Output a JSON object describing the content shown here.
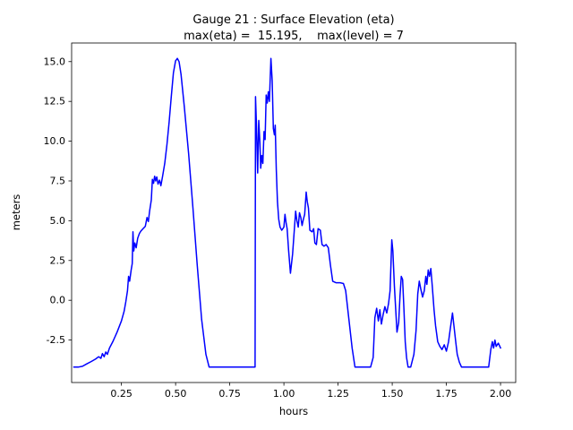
{
  "figure": {
    "background": "#ffffff"
  },
  "chart_data": {
    "type": "line",
    "title": "Gauge 21 : Surface Elevation (eta)",
    "subtitle": "max(eta) =  15.195,    max(level) = 7",
    "xlabel": "hours",
    "ylabel": "meters",
    "grid": false,
    "legend_position": "none",
    "line_color": "#0000ff",
    "line_width": 1.5,
    "xlim": [
      0.02,
      2.07
    ],
    "ylim": [
      -5.17,
      16.17
    ],
    "xticks": [
      0.25,
      0.5,
      0.75,
      1.0,
      1.25,
      1.5,
      1.75,
      2.0
    ],
    "xtick_labels": [
      "0.25",
      "0.50",
      "0.75",
      "1.00",
      "1.25",
      "1.50",
      "1.75",
      "2.00"
    ],
    "yticks": [
      -2.5,
      0.0,
      2.5,
      5.0,
      7.5,
      10.0,
      12.5,
      15.0
    ],
    "ytick_labels": [
      "-2.5",
      "0.0",
      "2.5",
      "5.0",
      "7.5",
      "10.0",
      "12.5",
      "15.0"
    ],
    "max_eta": 15.195,
    "max_level": 7,
    "series": [
      {
        "name": "eta",
        "points": [
          [
            0.03,
            -4.2
          ],
          [
            0.05,
            -4.2
          ],
          [
            0.07,
            -4.15
          ],
          [
            0.09,
            -4.0
          ],
          [
            0.11,
            -3.85
          ],
          [
            0.13,
            -3.7
          ],
          [
            0.145,
            -3.55
          ],
          [
            0.155,
            -3.65
          ],
          [
            0.162,
            -3.35
          ],
          [
            0.17,
            -3.55
          ],
          [
            0.178,
            -3.25
          ],
          [
            0.185,
            -3.4
          ],
          [
            0.195,
            -3.0
          ],
          [
            0.21,
            -2.6
          ],
          [
            0.23,
            -2.0
          ],
          [
            0.25,
            -1.3
          ],
          [
            0.262,
            -0.7
          ],
          [
            0.27,
            -0.1
          ],
          [
            0.278,
            0.6
          ],
          [
            0.283,
            1.5
          ],
          [
            0.288,
            1.2
          ],
          [
            0.295,
            1.9
          ],
          [
            0.3,
            2.3
          ],
          [
            0.303,
            4.3
          ],
          [
            0.307,
            3.1
          ],
          [
            0.312,
            3.6
          ],
          [
            0.318,
            3.3
          ],
          [
            0.325,
            3.9
          ],
          [
            0.333,
            4.2
          ],
          [
            0.34,
            4.35
          ],
          [
            0.35,
            4.5
          ],
          [
            0.36,
            4.65
          ],
          [
            0.368,
            5.2
          ],
          [
            0.374,
            4.95
          ],
          [
            0.38,
            5.6
          ],
          [
            0.388,
            6.3
          ],
          [
            0.393,
            7.6
          ],
          [
            0.398,
            7.35
          ],
          [
            0.403,
            7.8
          ],
          [
            0.408,
            7.5
          ],
          [
            0.413,
            7.75
          ],
          [
            0.419,
            7.3
          ],
          [
            0.426,
            7.55
          ],
          [
            0.432,
            7.2
          ],
          [
            0.44,
            7.8
          ],
          [
            0.45,
            8.6
          ],
          [
            0.46,
            9.8
          ],
          [
            0.47,
            11.2
          ],
          [
            0.48,
            12.8
          ],
          [
            0.49,
            14.3
          ],
          [
            0.5,
            15.05
          ],
          [
            0.508,
            15.2
          ],
          [
            0.516,
            15.0
          ],
          [
            0.525,
            14.2
          ],
          [
            0.54,
            12.2
          ],
          [
            0.56,
            9.2
          ],
          [
            0.58,
            5.8
          ],
          [
            0.6,
            2.2
          ],
          [
            0.62,
            -1.2
          ],
          [
            0.64,
            -3.4
          ],
          [
            0.655,
            -4.2
          ],
          [
            0.7,
            -4.2
          ],
          [
            0.75,
            -4.2
          ],
          [
            0.8,
            -4.2
          ],
          [
            0.85,
            -4.2
          ],
          [
            0.867,
            -4.2
          ],
          [
            0.869,
            12.8
          ],
          [
            0.874,
            10.7
          ],
          [
            0.879,
            8.0
          ],
          [
            0.884,
            11.3
          ],
          [
            0.889,
            9.9
          ],
          [
            0.893,
            8.3
          ],
          [
            0.898,
            9.1
          ],
          [
            0.903,
            8.6
          ],
          [
            0.908,
            10.6
          ],
          [
            0.913,
            10.1
          ],
          [
            0.918,
            12.9
          ],
          [
            0.923,
            12.4
          ],
          [
            0.928,
            13.1
          ],
          [
            0.933,
            12.5
          ],
          [
            0.94,
            15.2
          ],
          [
            0.946,
            13.8
          ],
          [
            0.951,
            10.8
          ],
          [
            0.956,
            10.4
          ],
          [
            0.96,
            11.0
          ],
          [
            0.965,
            8.2
          ],
          [
            0.97,
            6.2
          ],
          [
            0.976,
            5.1
          ],
          [
            0.982,
            4.6
          ],
          [
            0.99,
            4.4
          ],
          [
            1.0,
            4.6
          ],
          [
            1.005,
            5.4
          ],
          [
            1.01,
            4.9
          ],
          [
            1.015,
            4.5
          ],
          [
            1.022,
            3.1
          ],
          [
            1.03,
            1.7
          ],
          [
            1.04,
            2.9
          ],
          [
            1.048,
            4.4
          ],
          [
            1.054,
            5.6
          ],
          [
            1.06,
            5.0
          ],
          [
            1.066,
            4.6
          ],
          [
            1.072,
            5.5
          ],
          [
            1.078,
            5.2
          ],
          [
            1.084,
            4.7
          ],
          [
            1.09,
            5.1
          ],
          [
            1.096,
            5.4
          ],
          [
            1.103,
            6.8
          ],
          [
            1.108,
            6.2
          ],
          [
            1.113,
            5.8
          ],
          [
            1.12,
            4.4
          ],
          [
            1.13,
            4.3
          ],
          [
            1.137,
            4.5
          ],
          [
            1.143,
            3.6
          ],
          [
            1.15,
            3.5
          ],
          [
            1.158,
            4.5
          ],
          [
            1.168,
            4.4
          ],
          [
            1.176,
            3.5
          ],
          [
            1.185,
            3.4
          ],
          [
            1.195,
            3.5
          ],
          [
            1.205,
            3.3
          ],
          [
            1.215,
            2.2
          ],
          [
            1.225,
            1.2
          ],
          [
            1.24,
            1.1
          ],
          [
            1.26,
            1.1
          ],
          [
            1.275,
            1.05
          ],
          [
            1.285,
            0.6
          ],
          [
            1.3,
            -1.2
          ],
          [
            1.315,
            -3.0
          ],
          [
            1.328,
            -4.2
          ],
          [
            1.36,
            -4.2
          ],
          [
            1.4,
            -4.2
          ],
          [
            1.412,
            -3.6
          ],
          [
            1.42,
            -1.1
          ],
          [
            1.428,
            -0.5
          ],
          [
            1.436,
            -1.3
          ],
          [
            1.443,
            -0.6
          ],
          [
            1.45,
            -1.5
          ],
          [
            1.458,
            -0.9
          ],
          [
            1.466,
            -0.4
          ],
          [
            1.475,
            -0.8
          ],
          [
            1.483,
            -0.2
          ],
          [
            1.49,
            0.6
          ],
          [
            1.498,
            3.8
          ],
          [
            1.503,
            3.1
          ],
          [
            1.51,
            0.9
          ],
          [
            1.516,
            -0.6
          ],
          [
            1.522,
            -2.0
          ],
          [
            1.53,
            -1.4
          ],
          [
            1.536,
            0.3
          ],
          [
            1.542,
            1.5
          ],
          [
            1.548,
            1.3
          ],
          [
            1.554,
            -0.6
          ],
          [
            1.56,
            -2.6
          ],
          [
            1.566,
            -3.6
          ],
          [
            1.573,
            -4.2
          ],
          [
            1.585,
            -4.2
          ],
          [
            1.6,
            -3.4
          ],
          [
            1.61,
            -1.9
          ],
          [
            1.618,
            0.4
          ],
          [
            1.625,
            1.2
          ],
          [
            1.632,
            0.7
          ],
          [
            1.64,
            0.2
          ],
          [
            1.648,
            0.6
          ],
          [
            1.655,
            1.5
          ],
          [
            1.66,
            1.0
          ],
          [
            1.666,
            1.9
          ],
          [
            1.672,
            1.5
          ],
          [
            1.678,
            2.0
          ],
          [
            1.685,
            0.9
          ],
          [
            1.693,
            -0.6
          ],
          [
            1.7,
            -1.6
          ],
          [
            1.71,
            -2.6
          ],
          [
            1.72,
            -2.9
          ],
          [
            1.73,
            -3.1
          ],
          [
            1.74,
            -2.8
          ],
          [
            1.75,
            -3.2
          ],
          [
            1.76,
            -2.6
          ],
          [
            1.77,
            -1.6
          ],
          [
            1.778,
            -0.8
          ],
          [
            1.785,
            -1.6
          ],
          [
            1.793,
            -2.6
          ],
          [
            1.8,
            -3.4
          ],
          [
            1.81,
            -3.9
          ],
          [
            1.82,
            -4.2
          ],
          [
            1.86,
            -4.2
          ],
          [
            1.9,
            -4.2
          ],
          [
            1.945,
            -4.2
          ],
          [
            1.955,
            -3.1
          ],
          [
            1.962,
            -2.6
          ],
          [
            1.968,
            -3.0
          ],
          [
            1.974,
            -2.5
          ],
          [
            1.98,
            -2.9
          ],
          [
            1.99,
            -2.7
          ],
          [
            2.0,
            -3.0
          ]
        ]
      }
    ]
  }
}
